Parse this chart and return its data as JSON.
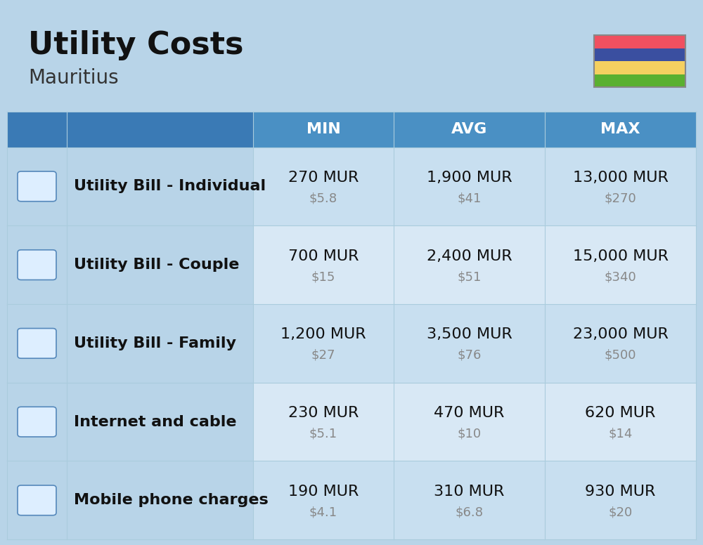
{
  "title": "Utility Costs",
  "subtitle": "Mauritius",
  "background_color": "#b8d4e8",
  "header_bg_color": "#4a90c4",
  "header_text_color": "#ffffff",
  "row_colors": [
    "#c8dff0",
    "#d8e8f5"
  ],
  "col_header_color": "#3a7ab5",
  "icon_col_color": "#b8d4e8",
  "label_col_color": "#b8d4e8",
  "columns": [
    "MIN",
    "AVG",
    "MAX"
  ],
  "rows": [
    {
      "label": "Utility Bill - Individual",
      "min_mur": "270 MUR",
      "min_usd": "$5.8",
      "avg_mur": "1,900 MUR",
      "avg_usd": "$41",
      "max_mur": "13,000 MUR",
      "max_usd": "$270"
    },
    {
      "label": "Utility Bill - Couple",
      "min_mur": "700 MUR",
      "min_usd": "$15",
      "avg_mur": "2,400 MUR",
      "avg_usd": "$51",
      "max_mur": "15,000 MUR",
      "max_usd": "$340"
    },
    {
      "label": "Utility Bill - Family",
      "min_mur": "1,200 MUR",
      "min_usd": "$27",
      "avg_mur": "3,500 MUR",
      "avg_usd": "$76",
      "max_mur": "23,000 MUR",
      "max_usd": "$500"
    },
    {
      "label": "Internet and cable",
      "min_mur": "230 MUR",
      "min_usd": "$5.1",
      "avg_mur": "470 MUR",
      "avg_usd": "$10",
      "max_mur": "620 MUR",
      "max_usd": "$14"
    },
    {
      "label": "Mobile phone charges",
      "min_mur": "190 MUR",
      "min_usd": "$4.1",
      "avg_mur": "310 MUR",
      "avg_usd": "$6.8",
      "max_mur": "930 MUR",
      "max_usd": "$20"
    }
  ],
  "flag_colors": [
    "#f05060",
    "#3a4fa0",
    "#f5d060",
    "#5ab030"
  ],
  "title_fontsize": 32,
  "subtitle_fontsize": 20,
  "header_fontsize": 16,
  "label_fontsize": 16,
  "value_fontsize": 16,
  "usd_fontsize": 13
}
